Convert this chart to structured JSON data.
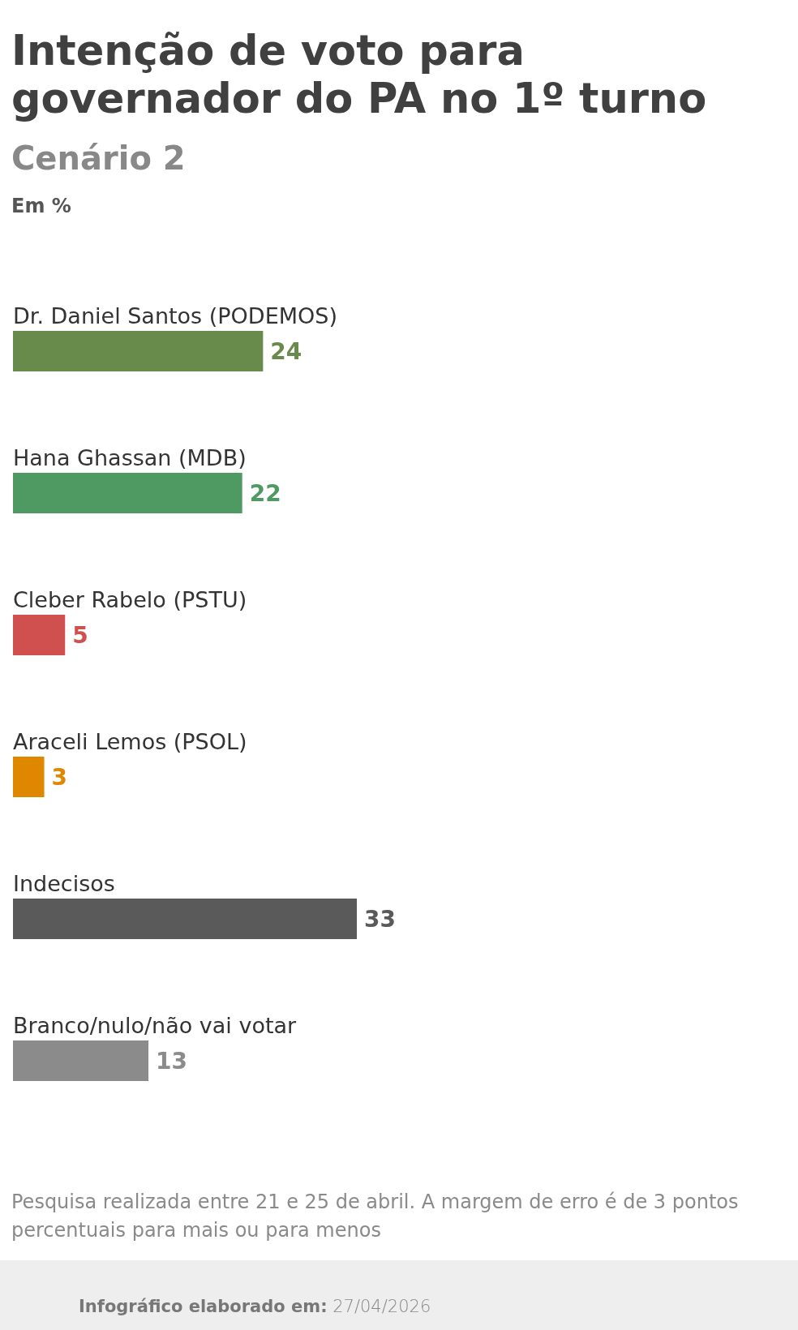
{
  "chart_data": {
    "type": "bar",
    "orientation": "horizontal",
    "title": "Intenção de voto para governador do PA no 1º turno",
    "subtitle": "Cenário 2",
    "xlabel": "Em %",
    "categories": [
      "Dr. Daniel Santos (PODEMOS)",
      "Hana Ghassan (MDB)",
      "Cleber Rabelo (PSTU)",
      "Araceli Lemos (PSOL)",
      "Indecisos",
      "Branco/nulo/não vai votar"
    ],
    "values": [
      24,
      22,
      5,
      3,
      33,
      13
    ],
    "colors": [
      "#688a4a",
      "#4f9a62",
      "#d05050",
      "#e08700",
      "#5a5a5a",
      "#8b8b8b"
    ],
    "data_labels": true,
    "annotations": [
      "Pesquisa realizada entre 21 e 25 de abril. A margem de erro é de 3 pontos percentuais para mais ou para menos",
      "Infográfico elaborado em: 27/04/2026"
    ]
  }
}
